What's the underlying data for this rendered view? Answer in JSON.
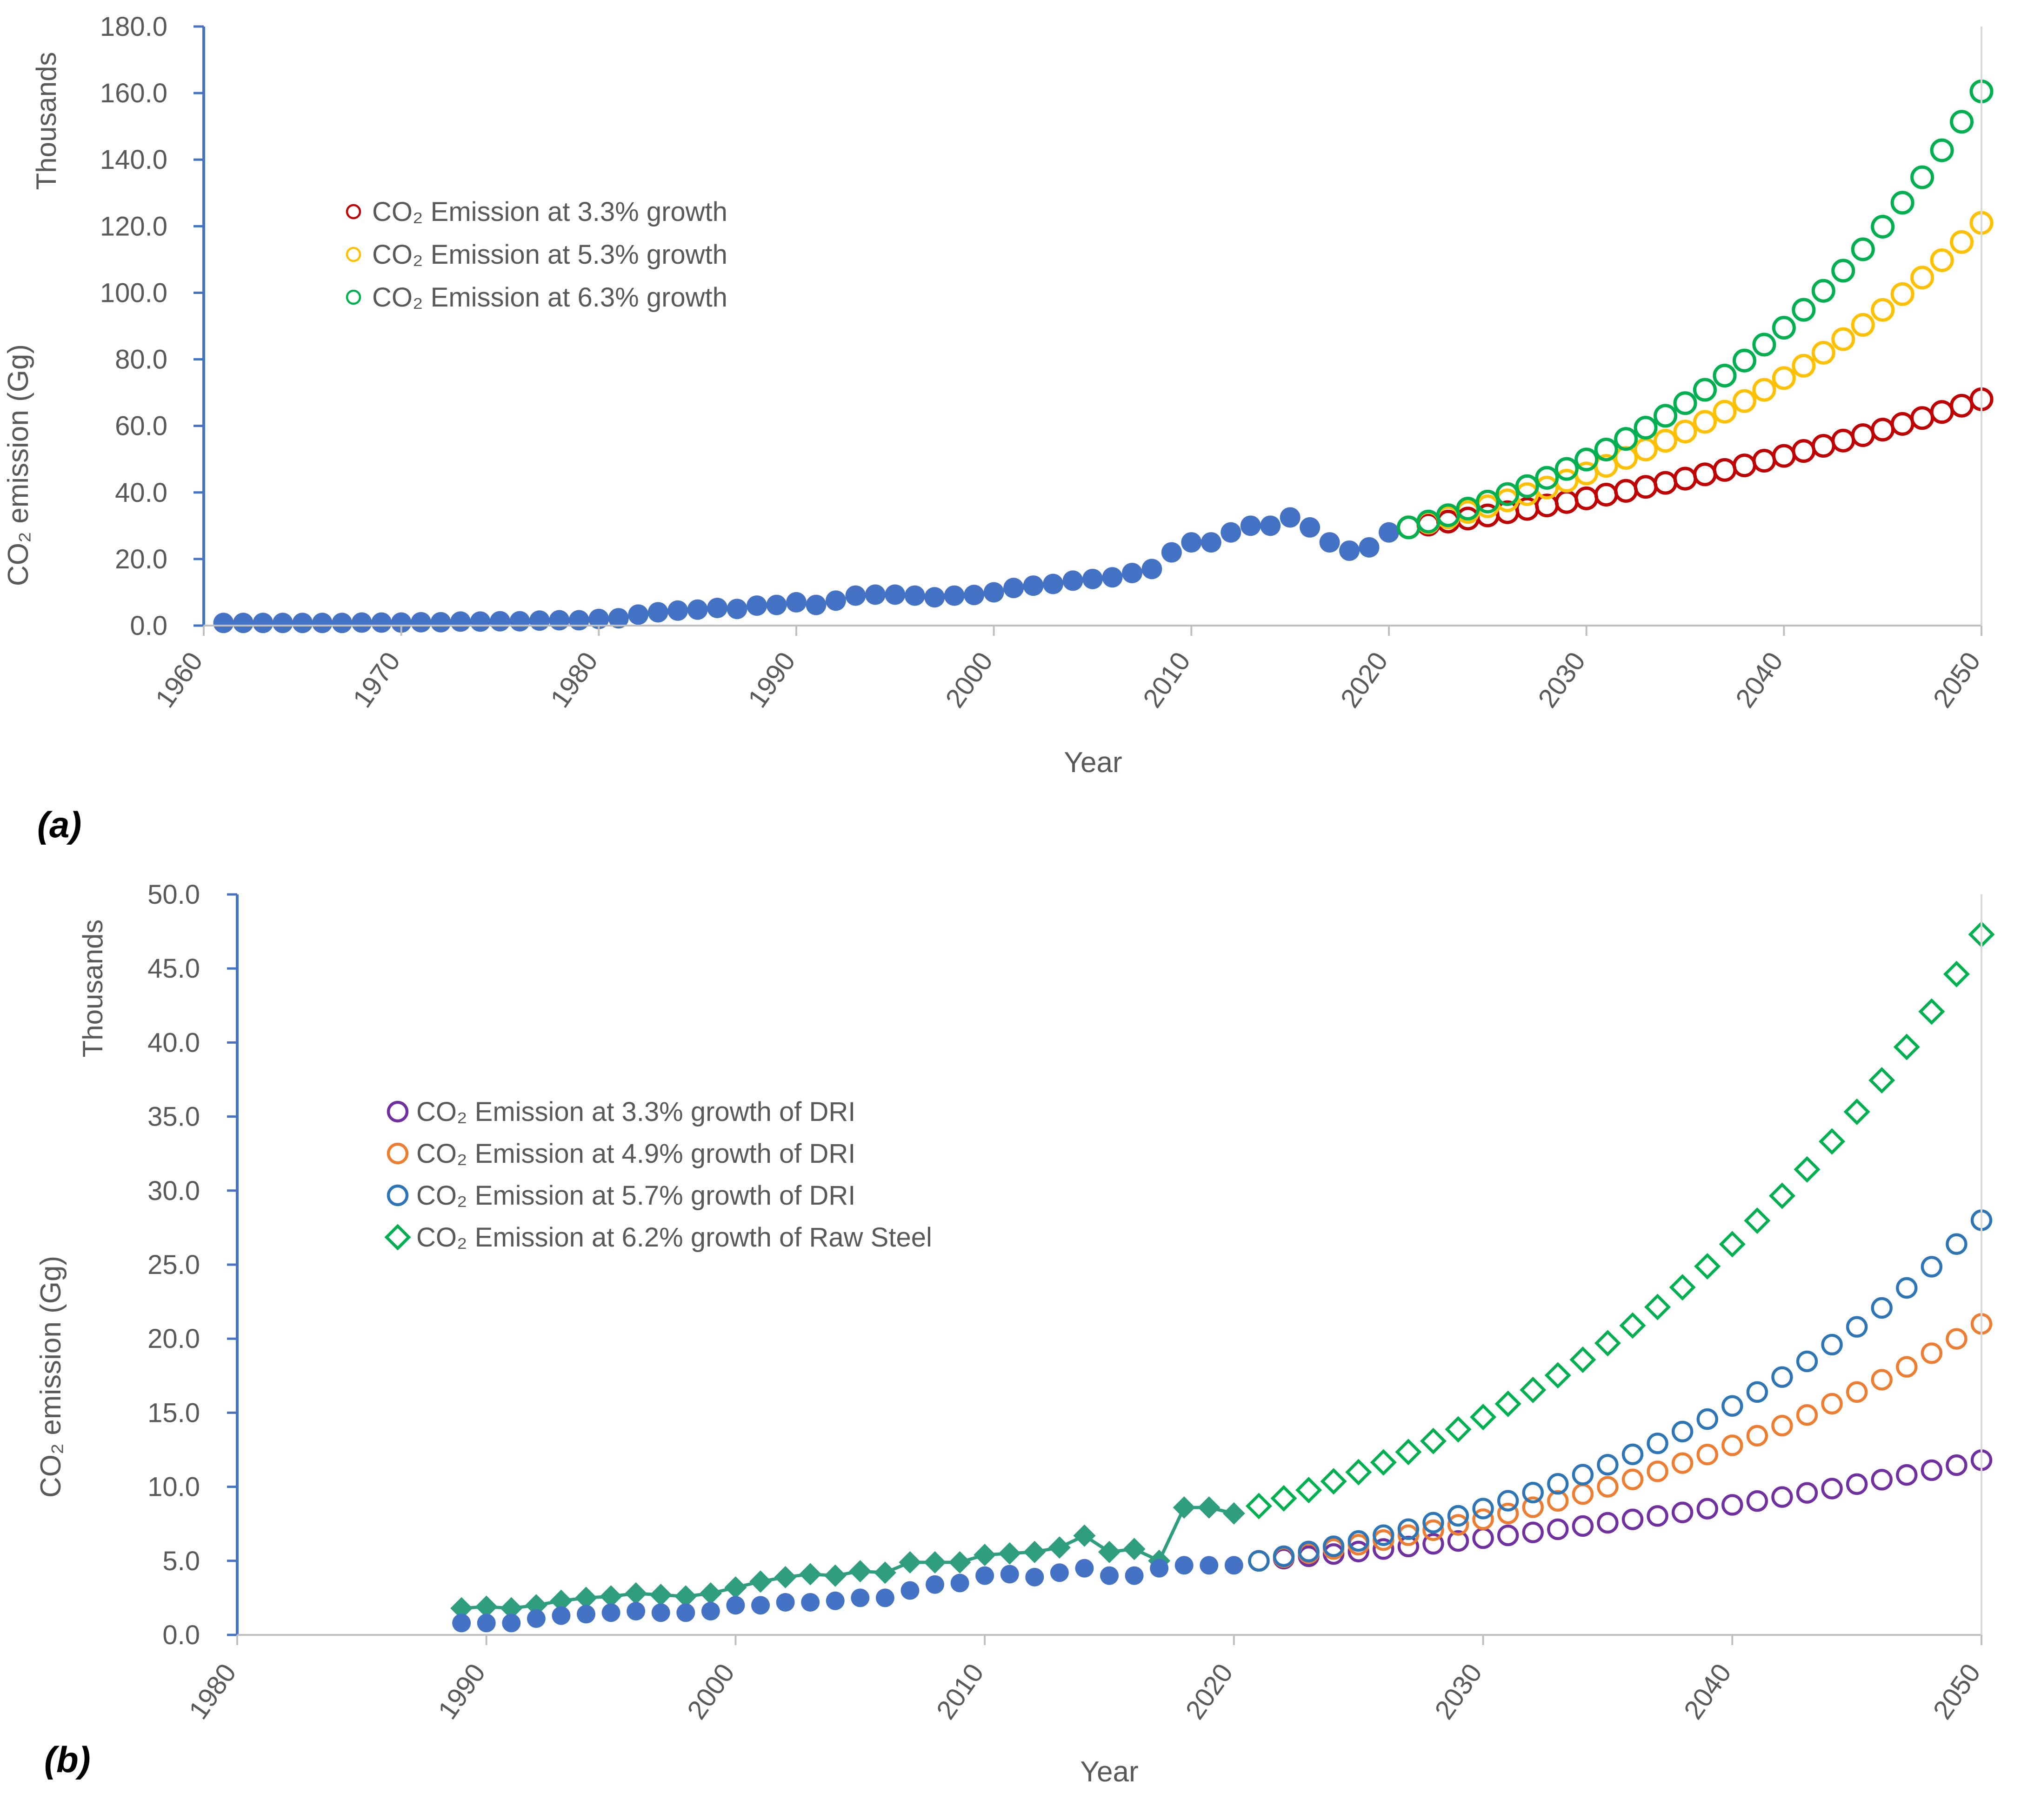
{
  "figure": {
    "background": "#ffffff",
    "axis_color": "#4472c4",
    "text_color": "#595959"
  },
  "panel_labels": {
    "a": "(a)",
    "b": "(b)"
  },
  "chart_data": [
    {
      "type": "scatter",
      "panel": "(a)",
      "title": "",
      "xlabel": "Year",
      "ylabel": "CO₂ emission (Gg)",
      "y_display_units": "Thousands",
      "xlim": [
        1960,
        2050
      ],
      "ylim": [
        0,
        180
      ],
      "x_ticks": [
        1960,
        1970,
        1980,
        1990,
        2000,
        2010,
        2020,
        2030,
        2040,
        2050
      ],
      "y_ticks": [
        "0.0",
        "20.0",
        "40.0",
        "60.0",
        "80.0",
        "100.0",
        "120.0",
        "140.0",
        "160.0",
        "180.0"
      ],
      "grid": false,
      "legend_position": "upper-left",
      "series": [
        {
          "name": "Historical CO₂ emission",
          "in_legend": false,
          "marker": "filled-circle",
          "color": "#4472c4",
          "x": [
            1961,
            1962,
            1963,
            1964,
            1965,
            1966,
            1967,
            1968,
            1969,
            1970,
            1971,
            1972,
            1973,
            1974,
            1975,
            1976,
            1977,
            1978,
            1979,
            1980,
            1981,
            1982,
            1983,
            1984,
            1985,
            1986,
            1987,
            1988,
            1989,
            1990,
            1991,
            1992,
            1993,
            1994,
            1995,
            1996,
            1997,
            1998,
            1999,
            2000,
            2001,
            2002,
            2003,
            2004,
            2005,
            2006,
            2007,
            2008,
            2009,
            2010,
            2011,
            2012,
            2013,
            2014,
            2015,
            2016,
            2017,
            2018,
            2019,
            2020
          ],
          "y": [
            0.8,
            0.8,
            0.8,
            0.8,
            0.8,
            0.8,
            0.8,
            0.9,
            0.9,
            0.9,
            1.0,
            1.0,
            1.2,
            1.2,
            1.3,
            1.3,
            1.5,
            1.6,
            1.6,
            2.0,
            2.2,
            3.3,
            4.0,
            4.5,
            4.8,
            5.3,
            5.0,
            6.0,
            6.2,
            7.0,
            6.2,
            7.5,
            9.0,
            9.3,
            9.3,
            9.0,
            8.5,
            9.0,
            9.2,
            10.0,
            11.3,
            12.0,
            12.5,
            13.5,
            14.0,
            14.5,
            15.8,
            17.0,
            22.0,
            25.0,
            25.0,
            28.0,
            30.0,
            30.0,
            32.5,
            29.5,
            25.0,
            22.5,
            23.5,
            28.0
          ]
        },
        {
          "name": "CO₂ Emission at 3.3% growth",
          "in_legend": true,
          "marker": "open-circle",
          "color": "#c00000",
          "start_year": 2021,
          "end_year": 2050,
          "start_value": 29.5,
          "end_value": 68.0
        },
        {
          "name": "CO₂ Emission at 5.3% growth",
          "in_legend": true,
          "marker": "open-circle",
          "color": "#ffc000",
          "start_year": 2021,
          "end_year": 2050,
          "start_value": 29.5,
          "end_value": 121.0
        },
        {
          "name": "CO₂ Emission at 6.3% growth",
          "in_legend": true,
          "marker": "open-circle",
          "color": "#00b050",
          "start_year": 2021,
          "end_year": 2050,
          "start_value": 29.5,
          "end_value": 160.5
        }
      ]
    },
    {
      "type": "scatter",
      "panel": "(b)",
      "title": "",
      "xlabel": "Year",
      "ylabel": "CO₂ emission (Gg)",
      "y_display_units": "Thousands",
      "xlim": [
        1980,
        2050
      ],
      "ylim": [
        0,
        50
      ],
      "x_ticks": [
        1980,
        1990,
        2000,
        2010,
        2020,
        2030,
        2040,
        2050
      ],
      "y_ticks": [
        "0.0",
        "5.0",
        "10.0",
        "15.0",
        "20.0",
        "25.0",
        "30.0",
        "35.0",
        "40.0",
        "45.0",
        "50.0"
      ],
      "grid": false,
      "legend_position": "middle-left",
      "series": [
        {
          "name": "Historical raw steel CO₂ emission",
          "in_legend": false,
          "marker": "filled-diamond",
          "line": true,
          "color": "#2e9e7e",
          "x": [
            1989,
            1990,
            1991,
            1992,
            1993,
            1994,
            1995,
            1996,
            1997,
            1998,
            1999,
            2000,
            2001,
            2002,
            2003,
            2004,
            2005,
            2006,
            2007,
            2008,
            2009,
            2010,
            2011,
            2012,
            2013,
            2014,
            2015,
            2016,
            2017,
            2018,
            2019,
            2020
          ],
          "y": [
            1.8,
            1.9,
            1.8,
            2.0,
            2.3,
            2.5,
            2.6,
            2.8,
            2.7,
            2.6,
            2.8,
            3.2,
            3.6,
            3.9,
            4.1,
            4.0,
            4.3,
            4.2,
            4.9,
            4.9,
            4.9,
            5.4,
            5.5,
            5.6,
            5.9,
            6.7,
            5.6,
            5.8,
            5.0,
            8.6,
            8.6,
            8.2
          ]
        },
        {
          "name": "Historical DRI CO₂ emission",
          "in_legend": false,
          "marker": "filled-circle",
          "color": "#4472c4",
          "x": [
            1989,
            1990,
            1991,
            1992,
            1993,
            1994,
            1995,
            1996,
            1997,
            1998,
            1999,
            2000,
            2001,
            2002,
            2003,
            2004,
            2005,
            2006,
            2007,
            2008,
            2009,
            2010,
            2011,
            2012,
            2013,
            2014,
            2015,
            2016,
            2017,
            2018,
            2019,
            2020
          ],
          "y": [
            0.8,
            0.8,
            0.8,
            1.1,
            1.3,
            1.4,
            1.5,
            1.6,
            1.5,
            1.5,
            1.6,
            2.0,
            2.0,
            2.2,
            2.2,
            2.3,
            2.5,
            2.5,
            3.0,
            3.4,
            3.5,
            4.0,
            4.1,
            3.9,
            4.2,
            4.5,
            4.0,
            4.0,
            4.5,
            4.7,
            4.7,
            4.7
          ]
        },
        {
          "name": "CO₂ Emission at 3.3% growth of DRI",
          "in_legend": true,
          "marker": "open-circle",
          "color": "#7030a0",
          "start_year": 2021,
          "end_year": 2050,
          "start_value": 5.0,
          "end_value": 11.8
        },
        {
          "name": "CO₂ Emission at 4.9% growth of DRI",
          "in_legend": true,
          "marker": "open-circle",
          "color": "#ed7d31",
          "start_year": 2021,
          "end_year": 2050,
          "start_value": 5.0,
          "end_value": 21.0
        },
        {
          "name": "CO₂ Emission at 5.7% growth of DRI",
          "in_legend": true,
          "marker": "open-circle",
          "color": "#2e75b6",
          "start_year": 2021,
          "end_year": 2050,
          "start_value": 5.0,
          "end_value": 28.0
        },
        {
          "name": "CO₂ Emission at 6.2% growth of Raw Steel",
          "in_legend": true,
          "marker": "open-diamond",
          "color": "#00b050",
          "start_year": 2021,
          "end_year": 2050,
          "start_value": 8.7,
          "end_value": 47.3
        }
      ]
    }
  ]
}
